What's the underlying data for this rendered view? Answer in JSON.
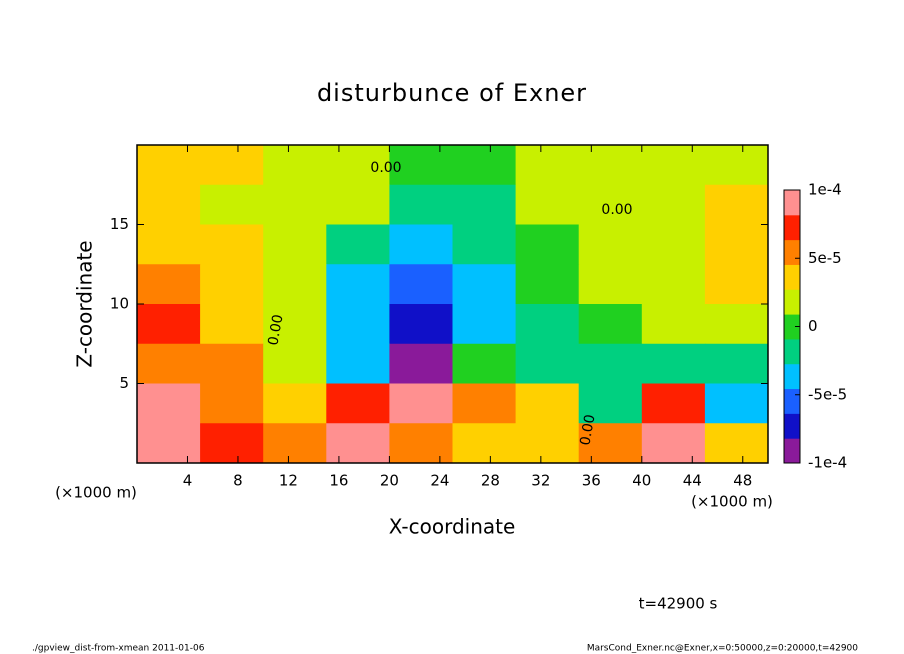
{
  "chart_data": {
    "type": "heatmap",
    "title": "disturbunce of Exner",
    "x_label": "X-coordinate",
    "y_label": "Z-coordinate",
    "x_unit": "(×1000 m)",
    "y_unit": "(×1000 m)",
    "time_label": "t=42900 s",
    "footer_left": "./gpview_dist-from-xmean  2011-01-06",
    "footer_right": "MarsCond_Exner.nc@Exner,x=0:50000,z=0:20000,t=42900",
    "annotations": [
      "0.00",
      "0.00",
      "0.00",
      "0.00"
    ],
    "xlim": [
      0,
      50
    ],
    "ylim": [
      0,
      20
    ],
    "xticks": [
      4,
      8,
      12,
      16,
      20,
      24,
      28,
      32,
      36,
      40,
      44,
      48
    ],
    "yticks": [
      5,
      10,
      15
    ],
    "clim": [
      -0.0001,
      0.0001
    ],
    "cticks": [
      {
        "value": 0.0001,
        "label": "1e-4"
      },
      {
        "value": 5e-05,
        "label": "5e-5"
      },
      0,
      {
        "value": -5e-05,
        "label": "-5e-5"
      },
      {
        "value": -0.0001,
        "label": "-1e-4"
      }
    ],
    "colormap": [
      "#8a1a9a",
      "#1010c8",
      "#1a60ff",
      "#00c0ff",
      "#00d080",
      "#20d020",
      "#c8f000",
      "#ffd000",
      "#ff8000",
      "#ff2000",
      "#ff9090"
    ],
    "z": [
      [
        3e-05,
        3e-05,
        2e-05,
        1e-05,
        0,
        0,
        1e-05,
        2e-05,
        2e-05,
        2e-05
      ],
      [
        3e-05,
        2e-05,
        2e-05,
        1e-05,
        -1e-05,
        -1e-05,
        1e-05,
        2e-05,
        2e-05,
        3e-05
      ],
      [
        4e-05,
        3e-05,
        1e-05,
        -2e-05,
        -3e-05,
        -2e-05,
        0,
        1e-05,
        2e-05,
        3e-05
      ],
      [
        6e-05,
        4e-05,
        1e-05,
        -3e-05,
        -6e-05,
        -3e-05,
        0,
        1e-05,
        2e-05,
        3e-05
      ],
      [
        7e-05,
        4e-05,
        1e-05,
        -4e-05,
        -8e-05,
        -3e-05,
        -1e-05,
        0,
        1e-05,
        2e-05
      ],
      [
        6e-05,
        5e-05,
        1e-05,
        -3e-05,
        -0.0001,
        0,
        -1e-05,
        -1e-05,
        -2e-05,
        -1e-05
      ],
      [
        0.0001,
        6e-05,
        3e-05,
        7e-05,
        0.0001,
        6e-05,
        3e-05,
        -2e-05,
        7e-05,
        -3e-05
      ],
      [
        0.0001,
        8e-05,
        6e-05,
        0.0001,
        5e-05,
        4e-05,
        3e-05,
        5e-05,
        0.0001,
        4e-05
      ]
    ]
  }
}
